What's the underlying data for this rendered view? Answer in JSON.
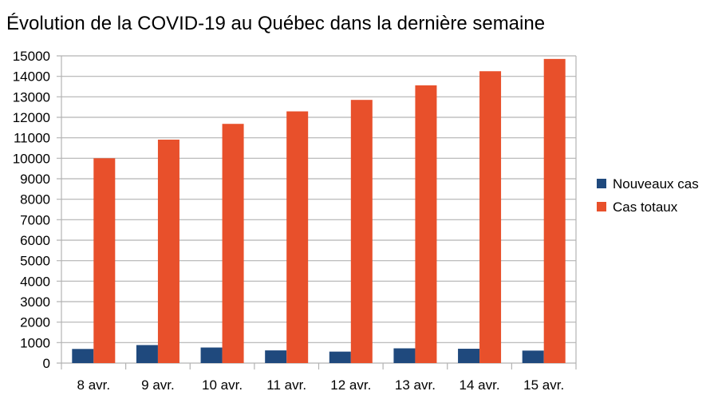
{
  "chart_data": {
    "type": "bar",
    "title": "Évolution de la COVID-19 au Québec dans la dernière semaine",
    "xlabel": "",
    "ylabel": "",
    "categories": [
      "8 avr.",
      "9 avr.",
      "10 avr.",
      "11 avr.",
      "12 avr.",
      "13 avr.",
      "14 avr.",
      "15 avr."
    ],
    "series": [
      {
        "name": "Nouveaux cas",
        "color": "#1f497d",
        "values": [
          690,
          880,
          760,
          620,
          560,
          720,
          700,
          610
        ]
      },
      {
        "name": "Cas totaux",
        "color": "#e8502b",
        "values": [
          10000,
          10910,
          11680,
          12290,
          12850,
          13560,
          14250,
          14850
        ]
      }
    ],
    "ylim": [
      0,
      15000
    ],
    "yticks": [
      0,
      1000,
      2000,
      3000,
      4000,
      5000,
      6000,
      7000,
      8000,
      9000,
      10000,
      11000,
      12000,
      13000,
      14000,
      15000
    ],
    "grid": true,
    "legend_position": "right"
  }
}
